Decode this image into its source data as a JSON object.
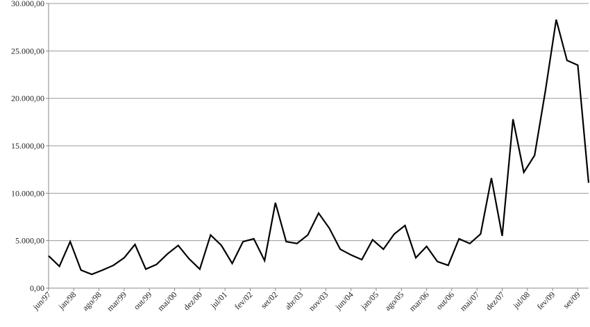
{
  "chart_data": {
    "type": "line",
    "x": [
      0,
      3,
      6,
      9,
      12,
      15,
      18,
      21,
      24,
      27,
      30,
      33,
      36,
      39,
      42,
      45,
      48,
      51,
      54,
      57,
      60,
      63,
      66,
      69,
      72,
      75,
      78,
      81,
      84,
      87,
      90,
      93,
      96,
      99,
      102,
      105,
      108,
      111,
      114,
      117,
      120,
      123,
      126,
      129,
      132,
      135,
      138,
      141,
      144,
      147,
      150
    ],
    "series": [
      {
        "name": null,
        "color": "#000000",
        "values": [
          3400,
          2300,
          4900,
          1900,
          1450,
          1900,
          2400,
          3200,
          4600,
          2000,
          2500,
          3600,
          4500,
          3100,
          2000,
          5600,
          4500,
          2600,
          4900,
          5200,
          2900,
          9000,
          4900,
          4700,
          5600,
          7900,
          6300,
          4100,
          3500,
          3000,
          5100,
          4100,
          5700,
          6600,
          3200,
          4400,
          2800,
          2400,
          5200,
          4700,
          5700,
          11600,
          5500,
          17800,
          12200,
          14000,
          20800,
          28300,
          24000,
          23500,
          11100
        ]
      }
    ],
    "xlim": [
      0,
      150
    ],
    "xticks": [
      {
        "value": 0,
        "label": "jun/97"
      },
      {
        "value": 7,
        "label": "jan/98"
      },
      {
        "value": 14,
        "label": "ago/98"
      },
      {
        "value": 21,
        "label": "mar/99"
      },
      {
        "value": 28,
        "label": "out/99"
      },
      {
        "value": 35,
        "label": "mai/00"
      },
      {
        "value": 42,
        "label": "dez/00"
      },
      {
        "value": 49,
        "label": "jul/01"
      },
      {
        "value": 56,
        "label": "fev/02"
      },
      {
        "value": 63,
        "label": "set/02"
      },
      {
        "value": 70,
        "label": "abr/03"
      },
      {
        "value": 77,
        "label": "nov/03"
      },
      {
        "value": 84,
        "label": "jun/04"
      },
      {
        "value": 91,
        "label": "jan/05"
      },
      {
        "value": 98,
        "label": "ago/05"
      },
      {
        "value": 105,
        "label": "mar/06"
      },
      {
        "value": 112,
        "label": "out/06"
      },
      {
        "value": 119,
        "label": "mai/07"
      },
      {
        "value": 126,
        "label": "dez/07"
      },
      {
        "value": 133,
        "label": "jul/08"
      },
      {
        "value": 140,
        "label": "fev/09"
      },
      {
        "value": 147,
        "label": "set/09"
      }
    ],
    "ylim": [
      0,
      30000
    ],
    "yticks": [
      {
        "value": 0,
        "label": "0,00"
      },
      {
        "value": 5000,
        "label": "5.000,00"
      },
      {
        "value": 10000,
        "label": "10.000,00"
      },
      {
        "value": 15000,
        "label": "15.000,00"
      },
      {
        "value": 20000,
        "label": "20.000,00"
      },
      {
        "value": 25000,
        "label": "25.000,00"
      },
      {
        "value": 30000,
        "label": "30.000,00"
      }
    ],
    "grid": true
  }
}
